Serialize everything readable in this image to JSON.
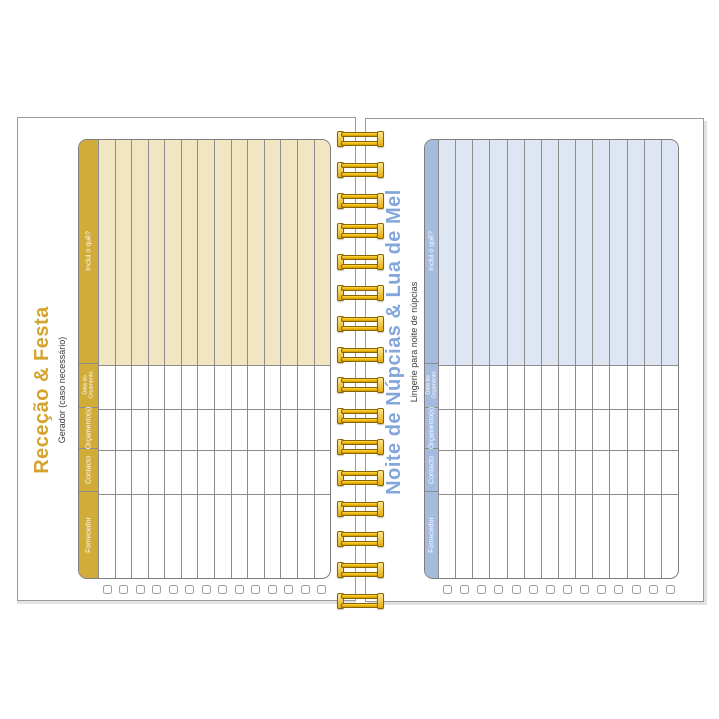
{
  "left_page": {
    "title": "Receção & Festa",
    "subtitle": "Gerador (caso necessário)",
    "table": {
      "headers": [
        "Inclui o quê?",
        "Data do Orçamento",
        "Orçamento(s)",
        "Contacto",
        "Fornecedor"
      ],
      "column_count": 14,
      "checkbox_count": 14
    },
    "theme": {
      "header_bg": "#d1ac39",
      "tint_bg": "#f2e6c2",
      "title_color": "#d5a42f"
    }
  },
  "right_page": {
    "title": "Noite de Núpcias & Lua de Mel",
    "subtitle": "Lingerie para noite de núpcias",
    "table": {
      "headers": [
        "Inclui o quê?",
        "Data do Orçamento",
        "Orçamento(s)",
        "Contacto",
        "Fornecedor"
      ],
      "column_count": 14,
      "checkbox_count": 14
    },
    "theme": {
      "header_bg": "#a5bbde",
      "tint_bg": "#dee6f3",
      "title_color": "#84a7db"
    }
  },
  "binding": {
    "loop_count": 16,
    "wire_color": "#e8b90f"
  }
}
